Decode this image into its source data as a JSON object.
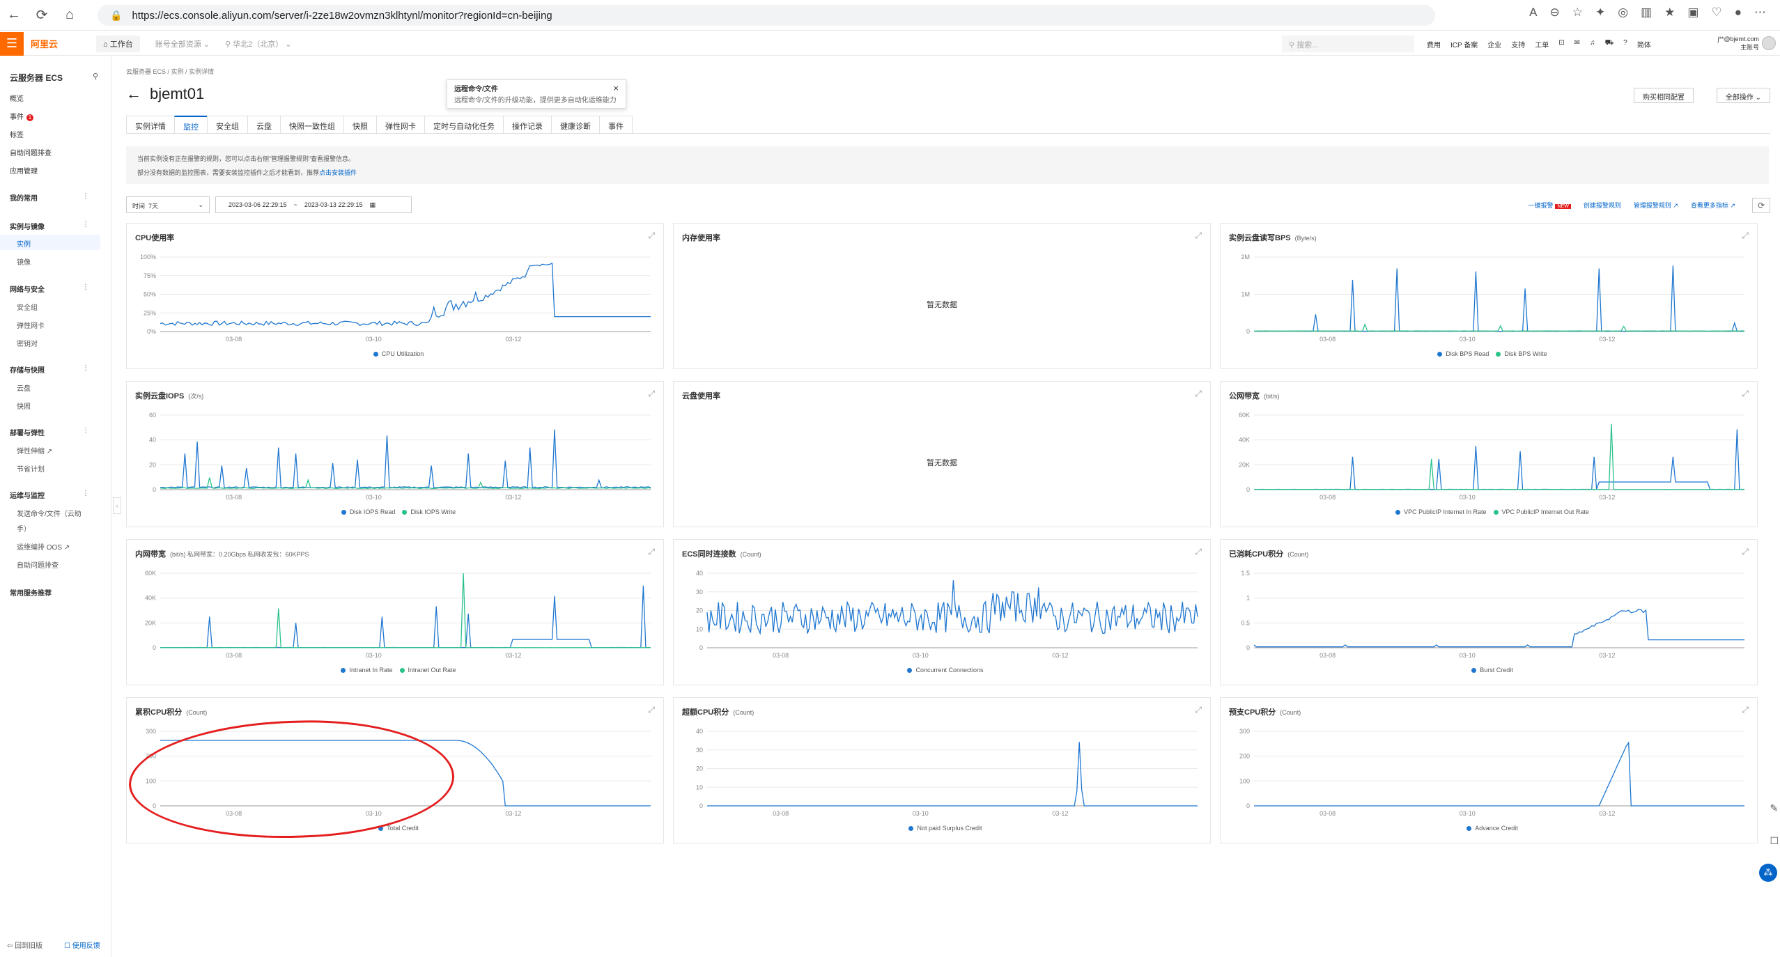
{
  "browser": {
    "url": "https://ecs.console.aliyun.com/server/i-2ze18w2ovmzn3klhtynl/monitor?regionId=cn-beijing"
  },
  "topbar": {
    "logo": "阿里云",
    "workbench": "工作台",
    "account_switch": "账号全部资源",
    "region": "华北2（北京）",
    "search_placeholder": "搜索...",
    "links": [
      "费用",
      "ICP 备案",
      "企业",
      "支持",
      "工单"
    ],
    "lang": "简体",
    "user_name": "j**@bjemt.com",
    "user_role": "主账号"
  },
  "sidebar": {
    "title": "云服务器 ECS",
    "items": {
      "overview": "概览",
      "events": "事件",
      "events_badge": "1",
      "tags": "标签",
      "auto_troubleshoot": "自助问题排查",
      "app_mgmt": "应用管理",
      "my_common": "我的常用",
      "group_instances": "实例与镜像",
      "instances": "实例",
      "images": "镜像",
      "group_network": "网络与安全",
      "security_groups": "安全组",
      "eni": "弹性网卡",
      "keypairs": "密钥对",
      "group_storage": "存储与快照",
      "disks": "云盘",
      "snapshots": "快照",
      "group_deploy": "部署与弹性",
      "autoscaling": "弹性伸缩",
      "savings": "节省计划",
      "group_ops": "运维与监控",
      "send_cmd": "发送命令/文件（云助",
      "send_cmd2": "手）",
      "oos": "运维编排 OOS",
      "self_troubleshoot": "自助问题排查",
      "common_recommend": "常用服务推荐",
      "back_old": "回到旧版",
      "feedback": "使用反馈"
    }
  },
  "page": {
    "breadcrumb": [
      "云服务器 ECS",
      "实例",
      "实例详情"
    ],
    "title": "bjemt01",
    "tooltip_title": "远程命令/文件",
    "tooltip_body": "远程命令/文件的升级功能，提供更多自动化运维能力",
    "buy_same": "购买相同配置",
    "all_ops": "全部操作",
    "tabs": [
      "实例详情",
      "监控",
      "安全组",
      "云盘",
      "快照一致性组",
      "快照",
      "弹性网卡",
      "定时与自动化任务",
      "操作记录",
      "健康诊断",
      "事件"
    ],
    "notice_line1": "当前实例没有正在报警的规则，您可以点击右侧“管理报警规则”查看报警信息。",
    "notice_line2_prefix": "部分没有数据的监控图表，需要安装监控插件之后才能看到，推荐",
    "notice_line2_link": "点击安装插件",
    "time_label": "时间",
    "time_range": "7天",
    "start_time": "2023-03-06 22:29:15",
    "end_time": "2023-03-13 22:29:15",
    "range_sep": "~",
    "links": {
      "one_click": "一键报警",
      "one_click_badge": "NEW",
      "create_rule": "创建报警规则",
      "manage_rule": "管理报警规则",
      "more_metrics": "查看更多指标"
    }
  },
  "colors": {
    "blue": "#1f77d0",
    "green": "#2bc28a",
    "annotation": "#e41e1e",
    "accent": "#ff6a00"
  },
  "panels": [
    {
      "title": "CPU使用率",
      "unit": "",
      "no_data": "",
      "yticks": [
        "100%",
        "75%",
        "50%",
        "25%",
        "0%"
      ],
      "legend": [
        "CPU Utilization"
      ]
    },
    {
      "title": "内存使用率",
      "unit": "",
      "no_data": "暂无数据",
      "yticks": [],
      "legend": []
    },
    {
      "title": "实例云盘读写BPS",
      "unit": "(Byte/s)",
      "no_data": "",
      "yticks": [
        "2M",
        "1M",
        "0"
      ],
      "legend": [
        "Disk BPS Read",
        "Disk BPS Write"
      ]
    },
    {
      "title": "实例云盘IOPS",
      "unit": "(次/s)",
      "no_data": "",
      "yticks": [
        "60",
        "40",
        "20",
        "0"
      ],
      "legend": [
        "Disk IOPS Read",
        "Disk IOPS Write"
      ]
    },
    {
      "title": "云盘使用率",
      "unit": "",
      "no_data": "暂无数据",
      "yticks": [],
      "legend": []
    },
    {
      "title": "公网带宽",
      "unit": "(bit/s)",
      "no_data": "",
      "yticks": [
        "60K",
        "40K",
        "20K",
        "0"
      ],
      "legend": [
        "VPC PublicIP Internet In Rate",
        "VPC PublicIP Internet Out Rate"
      ]
    },
    {
      "title": "内网带宽",
      "unit": "(bit/s)   私网带宽：0.20Gbps 私网收发包：60KPPS",
      "no_data": "",
      "yticks": [
        "60K",
        "40K",
        "20K",
        "0"
      ],
      "legend": [
        "Intranet In Rate",
        "Intranet Out Rate"
      ]
    },
    {
      "title": "ECS同时连接数",
      "unit": "(Count)",
      "no_data": "",
      "yticks": [
        "40",
        "30",
        "20",
        "10",
        "0"
      ],
      "legend": [
        "Concurrent Connections"
      ]
    },
    {
      "title": "已消耗CPU积分",
      "unit": "(Count)",
      "no_data": "",
      "yticks": [
        "1.5",
        "1",
        "0.5",
        "0"
      ],
      "legend": [
        "Burst Credit"
      ]
    },
    {
      "title": "累积CPU积分",
      "unit": "(Count)",
      "no_data": "",
      "yticks": [
        "300",
        "200",
        "100",
        "0"
      ],
      "legend": [
        "Total Credit"
      ]
    },
    {
      "title": "超额CPU积分",
      "unit": "(Count)",
      "no_data": "",
      "yticks": [
        "40",
        "30",
        "20",
        "10",
        "0"
      ],
      "legend": [
        "Not paid Surplus Credit"
      ]
    },
    {
      "title": "预支CPU积分",
      "unit": "(Count)",
      "no_data": "",
      "yticks": [
        "300",
        "200",
        "100",
        "0"
      ],
      "legend": [
        "Advance Credit"
      ]
    }
  ],
  "xticks": [
    "03-08",
    "03-10",
    "03-12"
  ]
}
